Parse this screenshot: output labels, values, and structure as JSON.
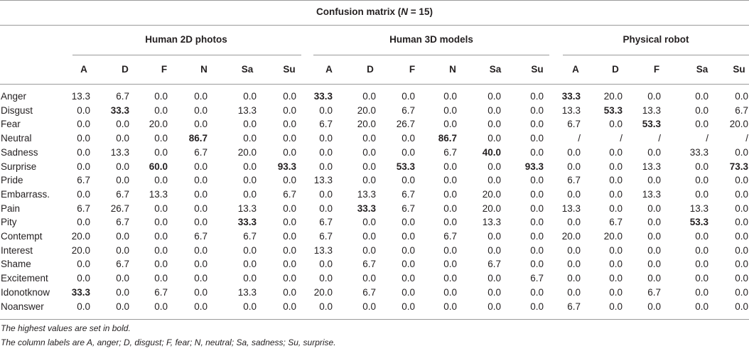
{
  "table": {
    "title_prefix": "Confusion matrix (",
    "title_n": "N",
    "title_suffix": " = 15)",
    "groups": [
      "Human 2D photos",
      "Human 3D models",
      "Physical robot"
    ],
    "column_headers": [
      [
        "A",
        "D",
        "F",
        "N",
        "Sa",
        "Su"
      ],
      [
        "A",
        "D",
        "F",
        "N",
        "Sa",
        "Su"
      ],
      [
        "A",
        "D",
        "F",
        "Sa",
        "Su"
      ]
    ],
    "rows": [
      {
        "label": "Anger",
        "values": [
          "13.3",
          "6.7",
          "0.0",
          "0.0",
          "0.0",
          "0.0",
          "33.3",
          "0.0",
          "0.0",
          "0.0",
          "0.0",
          "0.0",
          "33.3",
          "20.0",
          "0.0",
          "0.0",
          "0.0"
        ],
        "bold": [
          6,
          12
        ]
      },
      {
        "label": "Disgust",
        "values": [
          "0.0",
          "33.3",
          "0.0",
          "0.0",
          "13.3",
          "0.0",
          "0.0",
          "20.0",
          "6.7",
          "0.0",
          "0.0",
          "0.0",
          "13.3",
          "53.3",
          "13.3",
          "0.0",
          "6.7"
        ],
        "bold": [
          1,
          13
        ]
      },
      {
        "label": "Fear",
        "values": [
          "0.0",
          "0.0",
          "20.0",
          "0.0",
          "0.0",
          "0.0",
          "6.7",
          "20.0",
          "26.7",
          "0.0",
          "0.0",
          "0.0",
          "6.7",
          "0.0",
          "53.3",
          "0.0",
          "20.0"
        ],
        "bold": [
          14
        ]
      },
      {
        "label": "Neutral",
        "values": [
          "0.0",
          "0.0",
          "0.0",
          "86.7",
          "0.0",
          "0.0",
          "0.0",
          "0.0",
          "0.0",
          "86.7",
          "0.0",
          "0.0",
          "/",
          "/",
          "/",
          "/",
          "/"
        ],
        "bold": [
          3,
          9
        ]
      },
      {
        "label": "Sadness",
        "values": [
          "0.0",
          "13.3",
          "0.0",
          "6.7",
          "20.0",
          "0.0",
          "0.0",
          "0.0",
          "0.0",
          "6.7",
          "40.0",
          "0.0",
          "0.0",
          "0.0",
          "0.0",
          "33.3",
          "0.0"
        ],
        "bold": [
          10
        ]
      },
      {
        "label": "Surprise",
        "values": [
          "0.0",
          "0.0",
          "60.0",
          "0.0",
          "0.0",
          "93.3",
          "0.0",
          "0.0",
          "53.3",
          "0.0",
          "0.0",
          "93.3",
          "0.0",
          "0.0",
          "13.3",
          "0.0",
          "73.3"
        ],
        "bold": [
          2,
          5,
          8,
          11,
          16
        ]
      },
      {
        "label": "Pride",
        "values": [
          "6.7",
          "0.0",
          "0.0",
          "0.0",
          "0.0",
          "0.0",
          "13.3",
          "0.0",
          "0.0",
          "0.0",
          "0.0",
          "0.0",
          "6.7",
          "0.0",
          "0.0",
          "0.0",
          "0.0"
        ],
        "bold": []
      },
      {
        "label": "Embarrass.",
        "values": [
          "0.0",
          "6.7",
          "13.3",
          "0.0",
          "0.0",
          "6.7",
          "0.0",
          "13.3",
          "6.7",
          "0.0",
          "20.0",
          "0.0",
          "0.0",
          "0.0",
          "13.3",
          "0.0",
          "0.0"
        ],
        "bold": []
      },
      {
        "label": "Pain",
        "values": [
          "6.7",
          "26.7",
          "0.0",
          "0.0",
          "13.3",
          "0.0",
          "0.0",
          "33.3",
          "6.7",
          "0.0",
          "20.0",
          "0.0",
          "13.3",
          "0.0",
          "0.0",
          "13.3",
          "0.0"
        ],
        "bold": [
          7
        ]
      },
      {
        "label": "Pity",
        "values": [
          "0.0",
          "6.7",
          "0.0",
          "0.0",
          "33.3",
          "0.0",
          "6.7",
          "0.0",
          "0.0",
          "0.0",
          "13.3",
          "0.0",
          "0.0",
          "6.7",
          "0.0",
          "53.3",
          "0.0"
        ],
        "bold": [
          4,
          15
        ]
      },
      {
        "label": "Contempt",
        "values": [
          "20.0",
          "0.0",
          "0.0",
          "6.7",
          "6.7",
          "0.0",
          "6.7",
          "0.0",
          "0.0",
          "6.7",
          "0.0",
          "0.0",
          "20.0",
          "20.0",
          "0.0",
          "0.0",
          "0.0"
        ],
        "bold": []
      },
      {
        "label": "Interest",
        "values": [
          "20.0",
          "0.0",
          "0.0",
          "0.0",
          "0.0",
          "0.0",
          "13.3",
          "0.0",
          "0.0",
          "0.0",
          "0.0",
          "0.0",
          "0.0",
          "0.0",
          "0.0",
          "0.0",
          "0.0"
        ],
        "bold": []
      },
      {
        "label": "Shame",
        "values": [
          "0.0",
          "6.7",
          "0.0",
          "0.0",
          "0.0",
          "0.0",
          "0.0",
          "6.7",
          "0.0",
          "0.0",
          "6.7",
          "0.0",
          "0.0",
          "0.0",
          "0.0",
          "0.0",
          "0.0"
        ],
        "bold": []
      },
      {
        "label": "Excitement",
        "values": [
          "0.0",
          "0.0",
          "0.0",
          "0.0",
          "0.0",
          "0.0",
          "0.0",
          "0.0",
          "0.0",
          "0.0",
          "0.0",
          "6.7",
          "0.0",
          "0.0",
          "0.0",
          "0.0",
          "0.0"
        ],
        "bold": []
      },
      {
        "label": "Idonotknow",
        "values": [
          "33.3",
          "0.0",
          "6.7",
          "0.0",
          "13.3",
          "0.0",
          "20.0",
          "6.7",
          "0.0",
          "0.0",
          "0.0",
          "0.0",
          "0.0",
          "0.0",
          "6.7",
          "0.0",
          "0.0"
        ],
        "bold": [
          0
        ]
      },
      {
        "label": "Noanswer",
        "values": [
          "0.0",
          "0.0",
          "0.0",
          "0.0",
          "0.0",
          "0.0",
          "0.0",
          "0.0",
          "0.0",
          "0.0",
          "0.0",
          "0.0",
          "6.7",
          "0.0",
          "0.0",
          "0.0",
          "0.0"
        ],
        "bold": []
      }
    ],
    "footnotes": [
      "The highest values are set in bold.",
      "The column labels are A, anger; D, disgust; F, fear; N, neutral; Sa, sadness; Su, surprise."
    ]
  }
}
